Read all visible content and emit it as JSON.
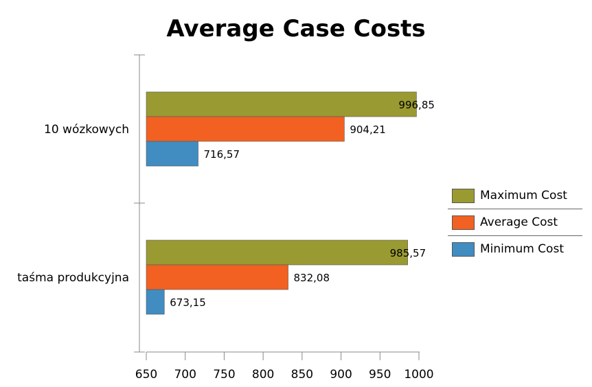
{
  "chart_data": {
    "type": "bar",
    "orientation": "horizontal",
    "title": "Average Case Costs",
    "categories": [
      "10 wózkowych",
      "taśma produkcyjna"
    ],
    "series": [
      {
        "name": "Maximum Cost",
        "color": "#9a9a32",
        "values": [
          996.85,
          985.57
        ],
        "labels": [
          "996,85",
          "985,57"
        ]
      },
      {
        "name": "Average Cost",
        "color": "#f26122",
        "values": [
          904.21,
          832.08
        ],
        "labels": [
          "904,21",
          "832,08"
        ]
      },
      {
        "name": "Minimum Cost",
        "color": "#418cc1",
        "values": [
          716.57,
          673.15
        ],
        "labels": [
          "716,57",
          "673,15"
        ]
      }
    ],
    "xlim": [
      650,
      1000
    ],
    "xticks": [
      650,
      700,
      750,
      800,
      850,
      900,
      950,
      1000
    ],
    "grid": false,
    "legend_position": "right"
  }
}
